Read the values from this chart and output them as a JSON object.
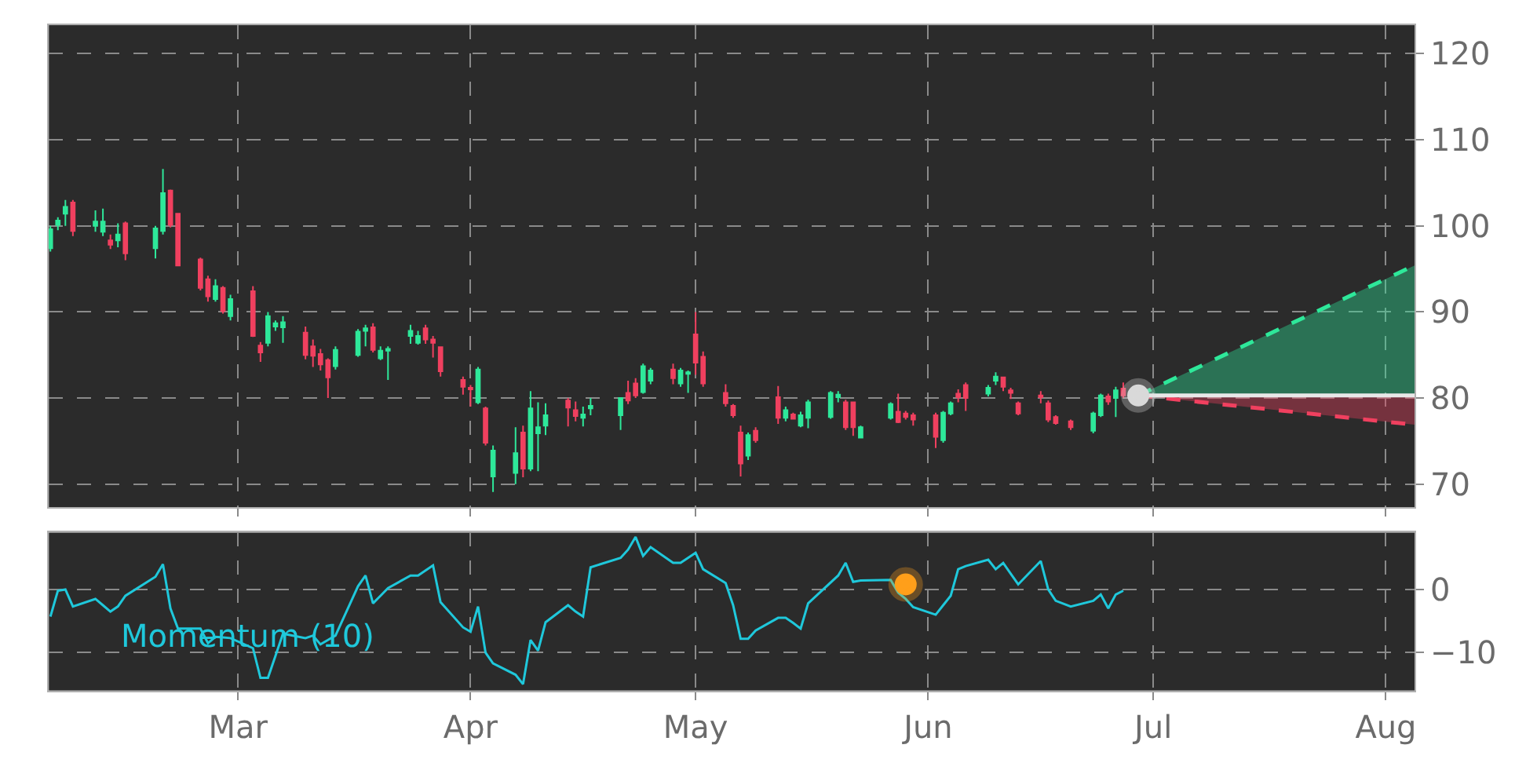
{
  "chart_data": [
    {
      "type": "candlestick",
      "tick_labels": "y",
      "grid": true,
      "xlim": [
        "--02-03T19:00",
        "--08-04T20:00"
      ],
      "xticks": [
        {
          "value": "--03-01",
          "label": null
        },
        {
          "value": "--04-01",
          "label": null
        },
        {
          "value": "--05-01",
          "label": null
        },
        {
          "value": "--06-01",
          "label": null
        },
        {
          "value": "--07-01",
          "label": null
        },
        {
          "value": "--08-01",
          "label": null
        }
      ],
      "ylim": [
        67.3,
        123.3
      ],
      "yticks": [
        70,
        80,
        90,
        100,
        110,
        120
      ],
      "x": [
        "--02-04",
        "--02-05",
        "--02-06",
        "--02-07",
        "--02-10",
        "--02-11",
        "--02-12",
        "--02-13",
        "--02-14",
        "--02-18",
        "--02-19",
        "--02-20",
        "--02-21",
        "--02-24",
        "--02-25",
        "--02-26",
        "--02-27",
        "--02-28",
        "--03-03",
        "--03-04",
        "--03-05",
        "--03-06",
        "--03-07",
        "--03-10",
        "--03-11",
        "--03-12",
        "--03-13",
        "--03-14",
        "--03-17",
        "--03-18",
        "--03-19",
        "--03-20",
        "--03-21",
        "--03-24",
        "--03-25",
        "--03-26",
        "--03-27",
        "--03-28",
        "--03-31",
        "--04-01",
        "--04-02",
        "--04-03",
        "--04-04",
        "--04-07",
        "--04-08",
        "--04-09",
        "--04-10",
        "--04-11",
        "--04-14",
        "--04-15",
        "--04-16",
        "--04-17",
        "--04-21",
        "--04-22",
        "--04-23",
        "--04-24",
        "--04-25",
        "--04-28",
        "--04-29",
        "--04-30",
        "--05-01",
        "--05-02",
        "--05-05",
        "--05-06",
        "--05-07",
        "--05-08",
        "--05-09",
        "--05-12",
        "--05-13",
        "--05-14",
        "--05-15",
        "--05-16",
        "--05-19",
        "--05-20",
        "--05-21",
        "--05-22",
        "--05-23",
        "--05-27",
        "--05-28",
        "--05-29",
        "--05-30",
        "--06-02",
        "--06-03",
        "--06-04",
        "--06-05",
        "--06-06",
        "--06-09",
        "--06-10",
        "--06-11",
        "--06-12",
        "--06-13",
        "--06-16",
        "--06-17",
        "--06-18",
        "--06-20",
        "--06-23",
        "--06-24",
        "--06-25",
        "--06-26",
        "--06-27"
      ],
      "ohlc": [
        [
          97.4,
          100,
          97,
          99.6
        ],
        [
          100.1,
          101,
          99.5,
          100.6
        ],
        [
          101.4,
          103,
          100,
          102.2
        ],
        [
          102.7,
          103,
          98.8,
          99.4
        ],
        [
          100,
          101.8,
          99.3,
          100.5
        ],
        [
          99.3,
          102,
          98.8,
          100.5
        ],
        [
          98.3,
          99,
          97.3,
          97.8
        ],
        [
          98.3,
          100.3,
          97.5,
          99
        ],
        [
          100.3,
          100.5,
          96,
          96.8
        ],
        [
          97.4,
          100,
          96.2,
          99.7
        ],
        [
          99.4,
          106.6,
          99,
          103.8
        ],
        [
          104.1,
          104.2,
          99.8,
          100.1
        ],
        [
          101.4,
          101.5,
          95.3,
          95.4
        ],
        [
          96.1,
          96.3,
          92.5,
          92.8
        ],
        [
          93.8,
          94.2,
          91.2,
          91.8
        ],
        [
          91.5,
          93.8,
          91.2,
          93
        ],
        [
          92.8,
          93,
          89.8,
          90.1
        ],
        [
          89.5,
          92,
          89,
          91.5
        ],
        [
          92.4,
          93,
          87.1,
          87.2
        ],
        [
          86.1,
          86.5,
          84.2,
          85.3
        ],
        [
          86.4,
          90,
          86,
          89.5
        ],
        [
          88.3,
          89,
          87.8,
          88.7
        ],
        [
          88.2,
          89.5,
          86.4,
          88.8
        ],
        [
          87.6,
          88.3,
          84.5,
          85
        ],
        [
          86,
          86.8,
          83.6,
          84.9
        ],
        [
          85.1,
          85.7,
          83.2,
          83.9
        ],
        [
          84.4,
          84.6,
          80,
          82.4
        ],
        [
          83.7,
          86,
          83.3,
          85.6
        ],
        [
          85,
          88,
          84.8,
          87.7
        ],
        [
          87.8,
          88.5,
          86,
          88.1
        ],
        [
          88.2,
          88.7,
          85.3,
          85.6
        ],
        [
          84.6,
          86,
          84.4,
          85.5
        ],
        [
          85.5,
          86,
          82.1,
          85.7
        ],
        [
          87.2,
          88.5,
          86.3,
          87.8
        ],
        [
          86.4,
          87.8,
          86.2,
          87.2
        ],
        [
          88.1,
          88.5,
          86.3,
          86.8
        ],
        [
          86.8,
          87.2,
          84.7,
          86.4
        ],
        [
          85.9,
          86,
          82.5,
          83.1
        ],
        [
          82.1,
          82.5,
          80.4,
          81.3
        ],
        [
          81.2,
          81.5,
          79,
          81
        ],
        [
          79.5,
          83.6,
          79.3,
          83.3
        ],
        [
          78.8,
          79,
          74.5,
          74.8
        ],
        [
          70.9,
          74.5,
          69.1,
          73.9
        ],
        [
          71.3,
          76.6,
          70,
          73.6
        ],
        [
          76,
          76.8,
          70.8,
          71.8
        ],
        [
          71.8,
          80.8,
          71.5,
          78.8
        ],
        [
          75.9,
          79.5,
          71.5,
          76.6
        ],
        [
          76.8,
          79.4,
          75.7,
          78
        ],
        [
          79.7,
          80,
          76.7,
          78.9
        ],
        [
          78.6,
          79.6,
          77.3,
          77.9
        ],
        [
          77.7,
          79,
          76.7,
          78.1
        ],
        [
          78.8,
          80,
          78,
          79.1
        ],
        [
          78,
          80.1,
          76.3,
          80
        ],
        [
          80.6,
          82,
          79.3,
          79.7
        ],
        [
          81.7,
          82.3,
          80,
          80.3
        ],
        [
          80.7,
          84,
          80.5,
          83.7
        ],
        [
          82,
          83.5,
          81.6,
          83.2
        ],
        [
          83.3,
          84,
          81.6,
          82.3
        ],
        [
          81.7,
          83.5,
          81.3,
          83.2
        ],
        [
          82.8,
          83.2,
          80.6,
          83
        ],
        [
          87.4,
          90,
          82.7,
          84.1
        ],
        [
          84.8,
          85.4,
          81.3,
          81.7
        ],
        [
          80.6,
          81.6,
          79,
          79.4
        ],
        [
          79.1,
          79.3,
          77.7,
          78
        ],
        [
          76,
          76.8,
          70.9,
          72.4
        ],
        [
          73.3,
          76,
          72.8,
          75.7
        ],
        [
          76.2,
          76.6,
          74.8,
          75.1
        ],
        [
          80.1,
          81.4,
          77,
          77.7
        ],
        [
          77.7,
          79,
          77.3,
          78.6
        ],
        [
          78.1,
          78.3,
          77.5,
          77.6
        ],
        [
          76.8,
          78.4,
          76.6,
          78
        ],
        [
          77.7,
          79.8,
          76.5,
          79.5
        ],
        [
          77.8,
          80.8,
          77.6,
          80.6
        ],
        [
          80.1,
          80.8,
          79.5,
          80.4
        ],
        [
          79.5,
          79.8,
          76.3,
          76.6
        ],
        [
          79.5,
          79.6,
          75.6,
          76.6
        ],
        [
          75.4,
          76.8,
          75.3,
          76.6
        ],
        [
          77.7,
          79.5,
          77.5,
          79.3
        ],
        [
          78.4,
          80.5,
          77.1,
          77.2
        ],
        [
          78.2,
          78.5,
          77.5,
          77.8
        ],
        [
          78,
          78.3,
          76.8,
          77.5
        ],
        [
          78,
          78.3,
          74.2,
          75.5
        ],
        [
          75.1,
          78.5,
          74.8,
          78.3
        ],
        [
          78.2,
          79.6,
          78,
          79.4
        ],
        [
          80.5,
          81,
          79.5,
          80.1
        ],
        [
          81.5,
          81.8,
          78.5,
          80
        ],
        [
          80.5,
          81.5,
          80.2,
          81.2
        ],
        [
          82,
          83,
          81.5,
          82.5
        ],
        [
          82.4,
          82.5,
          80.8,
          81.3
        ],
        [
          80.9,
          81.2,
          79.9,
          80.6
        ],
        [
          79.4,
          79.6,
          78,
          78.2
        ],
        [
          80.3,
          80.8,
          79.4,
          80.1
        ],
        [
          79.4,
          79.7,
          77.2,
          77.5
        ],
        [
          77.8,
          78,
          76.9,
          77.1
        ],
        [
          77.3,
          77.5,
          76.3,
          76.6
        ],
        [
          76.2,
          78.4,
          75.9,
          78.2
        ],
        [
          78,
          80.5,
          77.8,
          80.3
        ],
        [
          80.2,
          80.5,
          79.2,
          79.6
        ],
        [
          80,
          81.3,
          77.8,
          80.9
        ],
        [
          81.1,
          81.8,
          80,
          80.3
        ]
      ],
      "colors": [
        "#2ee89a",
        "#2ee89a",
        "#2ee89a",
        "#f0405f",
        "#2ee89a",
        "#2ee89a",
        "#f0405f",
        "#2ee89a",
        "#f0405f",
        "#2ee89a",
        "#2ee89a",
        "#f0405f",
        "#f0405f",
        "#f0405f",
        "#f0405f",
        "#2ee89a",
        "#f0405f",
        "#2ee89a",
        "#f0405f",
        "#f0405f",
        "#2ee89a",
        "#2ee89a",
        "#2ee89a",
        "#f0405f",
        "#f0405f",
        "#f0405f",
        "#f0405f",
        "#2ee89a",
        "#2ee89a",
        "#2ee89a",
        "#f0405f",
        "#2ee89a",
        "#2ee89a",
        "#2ee89a",
        "#2ee89a",
        "#f0405f",
        "#f0405f",
        "#f0405f",
        "#f0405f",
        "#f0405f",
        "#2ee89a",
        "#f0405f",
        "#2ee89a",
        "#2ee89a",
        "#f0405f",
        "#2ee89a",
        "#2ee89a",
        "#2ee89a",
        "#f0405f",
        "#f0405f",
        "#2ee89a",
        "#2ee89a",
        "#2ee89a",
        "#f0405f",
        "#f0405f",
        "#2ee89a",
        "#2ee89a",
        "#f0405f",
        "#2ee89a",
        "#2ee89a",
        "#f0405f",
        "#f0405f",
        "#f0405f",
        "#f0405f",
        "#f0405f",
        "#2ee89a",
        "#f0405f",
        "#f0405f",
        "#2ee89a",
        "#f0405f",
        "#2ee89a",
        "#2ee89a",
        "#2ee89a",
        "#2ee89a",
        "#f0405f",
        "#f0405f",
        "#2ee89a",
        "#2ee89a",
        "#f0405f",
        "#f0405f",
        "#f0405f",
        "#f0405f",
        "#2ee89a",
        "#2ee89a",
        "#f0405f",
        "#f0405f",
        "#2ee89a",
        "#2ee89a",
        "#f0405f",
        "#f0405f",
        "#f0405f",
        "#f0405f",
        "#f0405f",
        "#f0405f",
        "#f0405f",
        "#2ee89a",
        "#2ee89a",
        "#f0405f",
        "#2ee89a",
        "#f0405f"
      ],
      "series": [
        {
          "type": "line",
          "color": "#e8e8e8",
          "x": [
            "--06-29",
            "--08-04T20:00"
          ],
          "values": [
            80.3,
            80.3
          ]
        },
        {
          "type": "area",
          "color": "#2ee89a",
          "line_style": "dashed",
          "x": [
            "--06-29",
            "--08-04T20:00"
          ],
          "values": [
            80.3,
            95.4
          ]
        },
        {
          "type": "area",
          "color": "#f0405f",
          "line_style": "dashed",
          "x": [
            "--06-29",
            "--08-04T20:00"
          ],
          "values": [
            80.3,
            76.9
          ]
        },
        {
          "type": "scatter",
          "color": "#d9d9d9",
          "marker": "circle",
          "x": [
            "--06-29"
          ],
          "values": [
            80.3
          ]
        }
      ]
    },
    {
      "type": "line",
      "grid": true,
      "xlim": [
        "--02-03T19:00",
        "--08-04T20:00"
      ],
      "xticks": [
        {
          "value": "--03-01",
          "label": "Mar"
        },
        {
          "value": "--04-01",
          "label": "Apr"
        },
        {
          "value": "--05-01",
          "label": "May"
        },
        {
          "value": "--06-01",
          "label": "Jun"
        },
        {
          "value": "--07-01",
          "label": "Jul"
        },
        {
          "value": "--08-01",
          "label": "Aug"
        }
      ],
      "ylim": [
        -16,
        9
      ],
      "yticks": [
        {
          "value": -10,
          "label": "−10"
        },
        0
      ],
      "series": [
        {
          "name": "Momentum (10)",
          "color": "#1fc8db",
          "x": [
            "--02-04",
            "--02-05",
            "--02-06",
            "--02-07",
            "--02-10",
            "--02-11",
            "--02-12",
            "--02-13",
            "--02-14",
            "--02-18",
            "--02-19",
            "--02-20",
            "--02-21",
            "--02-24",
            "--02-25",
            "--02-26",
            "--02-27",
            "--02-28",
            "--03-03",
            "--03-04",
            "--03-05",
            "--03-06",
            "--03-07",
            "--03-10",
            "--03-11",
            "--03-12",
            "--03-13",
            "--03-14",
            "--03-17",
            "--03-18",
            "--03-19",
            "--03-20",
            "--03-21",
            "--03-24",
            "--03-25",
            "--03-27",
            "--03-28",
            "--03-31",
            "--04-01",
            "--04-02",
            "--04-03",
            "--04-04",
            "--04-07",
            "--04-08",
            "--04-09",
            "--04-10",
            "--04-11",
            "--04-14",
            "--04-15",
            "--04-16",
            "--04-17",
            "--04-21",
            "--04-22",
            "--04-23",
            "--04-24",
            "--04-25",
            "--04-28",
            "--04-29",
            "--05-01",
            "--05-02",
            "--05-05",
            "--05-06",
            "--05-07",
            "--05-08",
            "--05-09",
            "--05-12",
            "--05-13",
            "--05-14",
            "--05-15",
            "--05-16",
            "--05-20",
            "--05-21",
            "--05-22",
            "--05-23",
            "--05-27",
            "--05-28",
            "--05-29",
            "--05-30",
            "--06-02",
            "--06-03",
            "--06-04",
            "--06-05",
            "--06-06",
            "--06-09",
            "--06-10",
            "--06-11",
            "--06-12",
            "--06-13",
            "--06-16",
            "--06-17",
            "--06-18",
            "--06-20",
            "--06-23",
            "--06-24",
            "--06-25",
            "--06-26",
            "--06-27"
          ],
          "values": [
            -4.3,
            -0.2,
            0,
            -2.7,
            -1.5,
            -2.5,
            -3.5,
            -2.7,
            -1,
            2,
            4,
            -3,
            -6.2,
            -6.2,
            -8.5,
            -7.5,
            -7.6,
            -7.7,
            -9.3,
            -14,
            -14,
            -10.5,
            -7,
            -7.7,
            -7.3,
            -8.7,
            -8,
            -7.3,
            0.5,
            2.2,
            -2.2,
            -1,
            0.2,
            2.2,
            2.2,
            3.8,
            -2,
            -6,
            -6.7,
            -2.7,
            -10,
            -11.7,
            -13.5,
            -15,
            -8,
            -9.7,
            -5.2,
            -2.5,
            -3.5,
            -4.3,
            3.5,
            5,
            6.3,
            8.3,
            5.3,
            6.7,
            4.2,
            4.2,
            5.8,
            3.2,
            1,
            -2.5,
            -7.8,
            -7.8,
            -6.5,
            -4.5,
            -4.5,
            -5.3,
            -6.2,
            -2.2,
            2.2,
            4.2,
            1.2,
            1.4,
            1.5,
            -0.5,
            -1.5,
            -2.8,
            -4,
            -2.5,
            -1,
            3.2,
            3.7,
            4.7,
            3.2,
            4.2,
            2.5,
            0.8,
            4.5,
            0,
            -1.8,
            -2.7,
            -1.8,
            -0.8,
            -3,
            -0.8,
            -0.2
          ]
        },
        {
          "type": "scatter",
          "color": "#ff9f1a",
          "marker": "circle",
          "x": [
            "--05-29"
          ],
          "values": [
            0.8
          ]
        }
      ]
    }
  ]
}
